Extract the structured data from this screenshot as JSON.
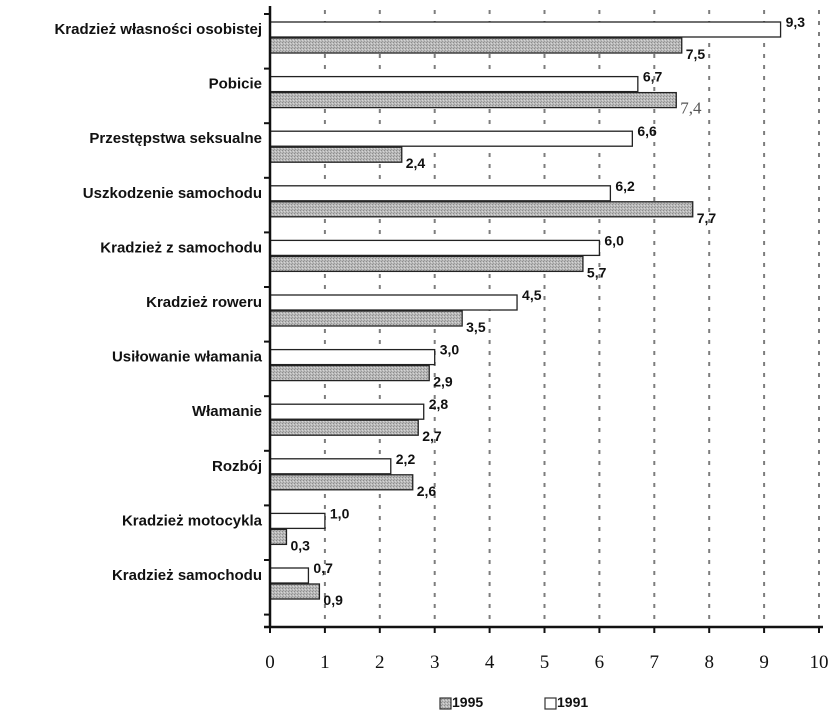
{
  "chart_data": {
    "type": "bar",
    "orientation": "horizontal",
    "categories": [
      "Kradzież własności osobistej",
      "Pobicie",
      "Przestępstwa seksualne",
      "Uszkodzenie samochodu",
      "Kradzież z samochodu",
      "Kradzież roweru",
      "Usiłowanie włamania",
      "Włamanie",
      "Rozbój",
      "Kradzież motocykla",
      "Kradzież samochodu"
    ],
    "series": [
      {
        "name": "1991",
        "color": "#ffffff",
        "values": [
          9.3,
          6.7,
          6.6,
          6.2,
          6.0,
          4.5,
          3.0,
          2.8,
          2.2,
          1.0,
          0.7
        ],
        "value_labels": [
          "9,3",
          "6,7",
          "6,6",
          "6,2",
          "6,0",
          "4,5",
          "3,0",
          "2,8",
          "2,2",
          "1,0",
          "0,7"
        ]
      },
      {
        "name": "1995",
        "color": "#b4b4b4",
        "values": [
          7.5,
          7.4,
          2.4,
          7.7,
          5.7,
          3.5,
          2.9,
          2.7,
          2.6,
          0.3,
          0.9
        ],
        "value_labels": [
          "7,5",
          "7,4",
          "2,4",
          "7,7",
          "5,7",
          "3,5",
          "2,9",
          "2,7",
          "2,6",
          "0,3",
          "0,9"
        ]
      }
    ],
    "xlim": [
      0,
      10
    ],
    "xticks": [
      "0",
      "1",
      "2",
      "3",
      "4",
      "5",
      "6",
      "7",
      "8",
      "9",
      "10"
    ],
    "grid": "vertical dashed",
    "legend": {
      "placement": "bottom",
      "entries": [
        "1995",
        "1991"
      ]
    }
  }
}
